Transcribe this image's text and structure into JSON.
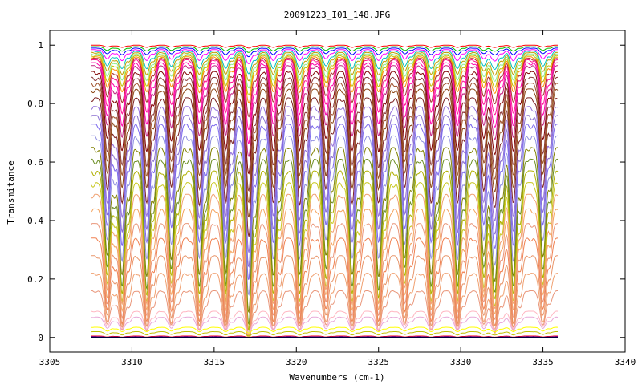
{
  "chart_data": {
    "type": "line",
    "title": "20091223_I01_148.JPG",
    "xlabel": "Wavenumbers (cm-1)",
    "ylabel": "Transmitance",
    "xlim": [
      3305,
      3340
    ],
    "ylim": [
      -0.05,
      1.05
    ],
    "x_ticks": [
      3305,
      3310,
      3315,
      3320,
      3325,
      3330,
      3335,
      3340
    ],
    "x_tick_labels": [
      "3305",
      "3310",
      "3315",
      "3320",
      "3325",
      "3330",
      "3335",
      "3340"
    ],
    "y_ticks": [
      0,
      0.2,
      0.4,
      0.6,
      0.8,
      1
    ],
    "y_tick_labels": [
      "0",
      "0.2",
      "0.4",
      "0.6",
      "0.8",
      "1"
    ],
    "grid": false,
    "legend": "none",
    "x_range": [
      3307.5,
      3335.9
    ],
    "absorption_lines": [
      3308.5,
      3309.4,
      3310.9,
      3312.4,
      3314.1,
      3315.7,
      3317.1,
      3318.6,
      3320.2,
      3321.8,
      3323.4,
      3325.0,
      3326.6,
      3328.2,
      3329.8,
      3331.4,
      3332.1,
      3333.2,
      3335.0
    ],
    "series": [
      {
        "baseline": 1.0,
        "depth": 0.01,
        "color": "#ff0000"
      },
      {
        "baseline": 0.995,
        "depth": 0.02,
        "color": "#00c000"
      },
      {
        "baseline": 0.99,
        "depth": 0.03,
        "color": "#0000ff"
      },
      {
        "baseline": 0.985,
        "depth": 0.05,
        "color": "#ff00ff"
      },
      {
        "baseline": 0.98,
        "depth": 0.08,
        "color": "#00c0c0"
      },
      {
        "baseline": 0.975,
        "depth": 0.1,
        "color": "#c0a000"
      },
      {
        "baseline": 0.97,
        "depth": 0.12,
        "color": "#90ee90"
      },
      {
        "baseline": 0.965,
        "depth": 0.14,
        "color": "#c0c000"
      },
      {
        "baseline": 0.96,
        "depth": 0.16,
        "color": "#ff8c00"
      },
      {
        "baseline": 0.955,
        "depth": 0.2,
        "color": "#a52a2a"
      },
      {
        "baseline": 0.95,
        "depth": 0.24,
        "color": "#ff1493"
      },
      {
        "baseline": 0.94,
        "depth": 0.28,
        "color": "#ff00aa"
      },
      {
        "baseline": 0.93,
        "depth": 0.32,
        "color": "#c02080"
      },
      {
        "baseline": 0.91,
        "depth": 0.36,
        "color": "#800000"
      },
      {
        "baseline": 0.89,
        "depth": 0.4,
        "color": "#8b3a3a"
      },
      {
        "baseline": 0.87,
        "depth": 0.42,
        "color": "#a0522d"
      },
      {
        "baseline": 0.85,
        "depth": 0.45,
        "color": "#8b4513"
      },
      {
        "baseline": 0.82,
        "depth": 0.48,
        "color": "#7b2020"
      },
      {
        "baseline": 0.79,
        "depth": 0.5,
        "color": "#9370db"
      },
      {
        "baseline": 0.76,
        "depth": 0.52,
        "color": "#8a6fd0"
      },
      {
        "baseline": 0.73,
        "depth": 0.54,
        "color": "#7b68ee"
      },
      {
        "baseline": 0.69,
        "depth": 0.56,
        "color": "#9090e0"
      },
      {
        "baseline": 0.65,
        "depth": 0.58,
        "color": "#808000"
      },
      {
        "baseline": 0.61,
        "depth": 0.58,
        "color": "#6b8e23"
      },
      {
        "baseline": 0.57,
        "depth": 0.56,
        "color": "#b0b000"
      },
      {
        "baseline": 0.53,
        "depth": 0.54,
        "color": "#c8c820"
      },
      {
        "baseline": 0.49,
        "depth": 0.5,
        "color": "#f0a070"
      },
      {
        "baseline": 0.44,
        "depth": 0.46,
        "color": "#f4a460"
      },
      {
        "baseline": 0.39,
        "depth": 0.42,
        "color": "#e9967a"
      },
      {
        "baseline": 0.34,
        "depth": 0.38,
        "color": "#f08050"
      },
      {
        "baseline": 0.28,
        "depth": 0.32,
        "color": "#e8956a"
      },
      {
        "baseline": 0.22,
        "depth": 0.26,
        "color": "#f0a070"
      },
      {
        "baseline": 0.16,
        "depth": 0.18,
        "color": "#e9967a"
      },
      {
        "baseline": 0.09,
        "depth": 0.08,
        "color": "#ffb6c1"
      },
      {
        "baseline": 0.07,
        "depth": 0.06,
        "color": "#e8a8d8"
      },
      {
        "baseline": 0.035,
        "depth": 0.02,
        "color": "#ffff00"
      },
      {
        "baseline": 0.02,
        "depth": 0.015,
        "color": "#c0c000"
      },
      {
        "baseline": 0.005,
        "depth": 0.005,
        "color": "#ff0000"
      },
      {
        "baseline": 0.002,
        "depth": 0.002,
        "color": "#0000ff"
      },
      {
        "baseline": 0.0,
        "depth": 0.0,
        "color": "#000000"
      }
    ]
  }
}
